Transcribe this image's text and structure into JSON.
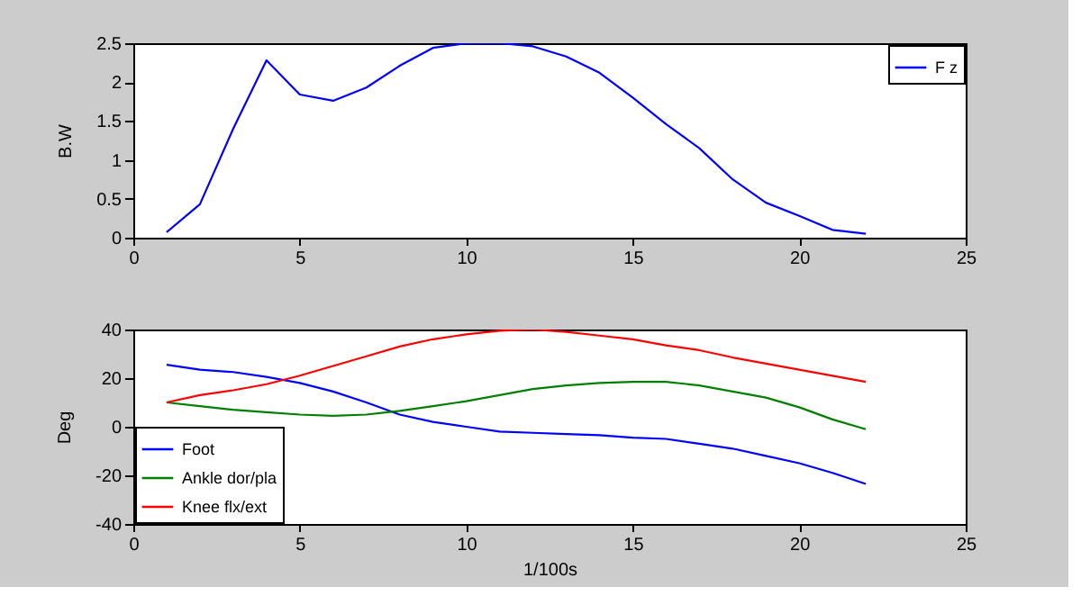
{
  "chart_data": [
    {
      "type": "line",
      "ylabel": "B.W",
      "x": [
        1,
        2,
        3,
        4,
        5,
        6,
        7,
        8,
        9,
        10,
        11,
        12,
        13,
        14,
        15,
        16,
        17,
        18,
        19,
        20,
        21,
        22
      ],
      "xlim": [
        0,
        25
      ],
      "xticks": [
        0,
        5,
        10,
        15,
        20,
        25
      ],
      "ylim": [
        0,
        2.5
      ],
      "yticks": [
        0,
        0.5,
        1,
        1.5,
        2,
        2.5
      ],
      "grid": false,
      "legend": "top right",
      "series": [
        {
          "name": "F z",
          "color": "#0000ff",
          "values": [
            0.07,
            0.43,
            1.4,
            2.28,
            1.84,
            1.76,
            1.93,
            2.21,
            2.44,
            2.5,
            2.5,
            2.46,
            2.33,
            2.12,
            1.8,
            1.46,
            1.15,
            0.75,
            0.45,
            0.28,
            0.1,
            0.05
          ]
        }
      ]
    },
    {
      "type": "line",
      "xlabel": "1/100s",
      "ylabel": "Deg",
      "x": [
        1,
        2,
        3,
        4,
        5,
        6,
        7,
        8,
        9,
        10,
        11,
        12,
        13,
        14,
        15,
        16,
        17,
        18,
        19,
        20,
        21,
        22
      ],
      "xlim": [
        0,
        25
      ],
      "xticks": [
        0,
        5,
        10,
        15,
        20,
        25
      ],
      "ylim": [
        -40,
        40
      ],
      "yticks": [
        -40,
        -20,
        0,
        20,
        40
      ],
      "grid": false,
      "legend": "bottom left",
      "series": [
        {
          "name": "Foot",
          "color": "#0000ff",
          "values": [
            25.5,
            23.5,
            22.5,
            20.5,
            18,
            14.5,
            10,
            5,
            2,
            0,
            -2,
            -2.5,
            -3,
            -3.5,
            -4.5,
            -5,
            -7,
            -9,
            -12,
            -15,
            -19,
            -23.5
          ]
        },
        {
          "name": "Ankle dor/pla",
          "color": "#008000",
          "values": [
            10,
            8.5,
            7,
            6,
            5,
            4.5,
            5,
            6.5,
            8.5,
            10.5,
            13,
            15.5,
            17,
            18,
            18.5,
            18.5,
            17,
            14.5,
            12,
            8,
            3,
            -1
          ]
        },
        {
          "name": "Knee flx/ext",
          "color": "#ff0000",
          "values": [
            10,
            13,
            15,
            17.5,
            21,
            25,
            29,
            33,
            36,
            38,
            39.5,
            40,
            39,
            37.5,
            36,
            33.5,
            31.5,
            28.5,
            26,
            23.5,
            21,
            18.5
          ]
        }
      ]
    }
  ]
}
